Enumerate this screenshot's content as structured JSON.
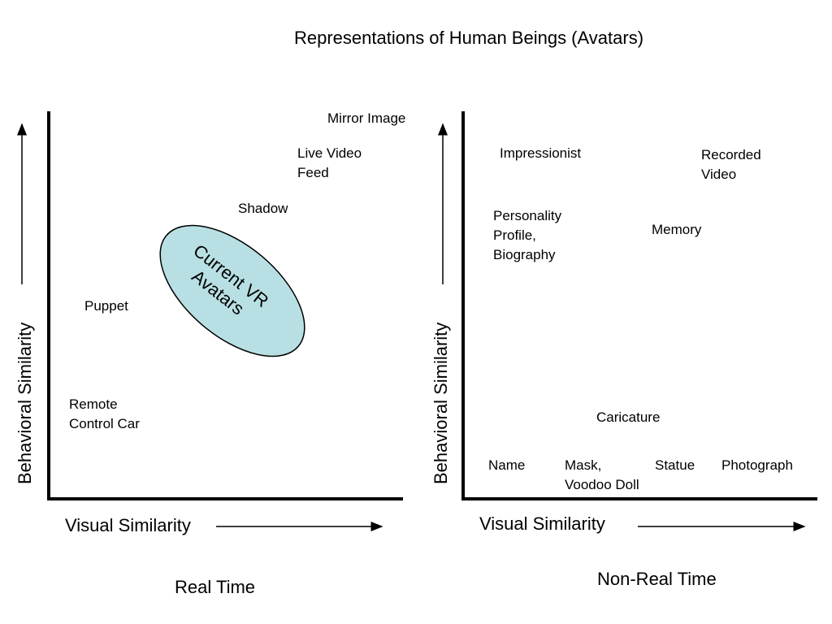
{
  "title": "Representations of Human Beings (Avatars)",
  "left_panel": {
    "caption": "Real Time",
    "x_axis_label": "Visual Similarity",
    "y_axis_label": "Behavioral Similarity",
    "items": {
      "mirror_image": "Mirror Image",
      "live_video_feed_1": "Live Video",
      "live_video_feed_2": "Feed",
      "shadow": "Shadow",
      "puppet": "Puppet",
      "remote_1": "Remote",
      "remote_2": "Control Car"
    },
    "highlight": {
      "line1": "Current VR",
      "line2": "Avatars",
      "fill_color": "#b8e0e4"
    }
  },
  "right_panel": {
    "caption": "Non-Real Time",
    "x_axis_label": "Visual Similarity",
    "y_axis_label": "Behavioral Similarity",
    "items": {
      "impressionist": "Impressionist",
      "recorded_1": "Recorded",
      "recorded_2": "Video",
      "personality_1": "Personality",
      "personality_2": "Profile,",
      "personality_3": "Biography",
      "memory": "Memory",
      "caricature": "Caricature",
      "name": "Name",
      "mask_1": "Mask,",
      "mask_2": "Voodoo Doll",
      "statue": "Statue",
      "photograph": "Photograph"
    }
  }
}
